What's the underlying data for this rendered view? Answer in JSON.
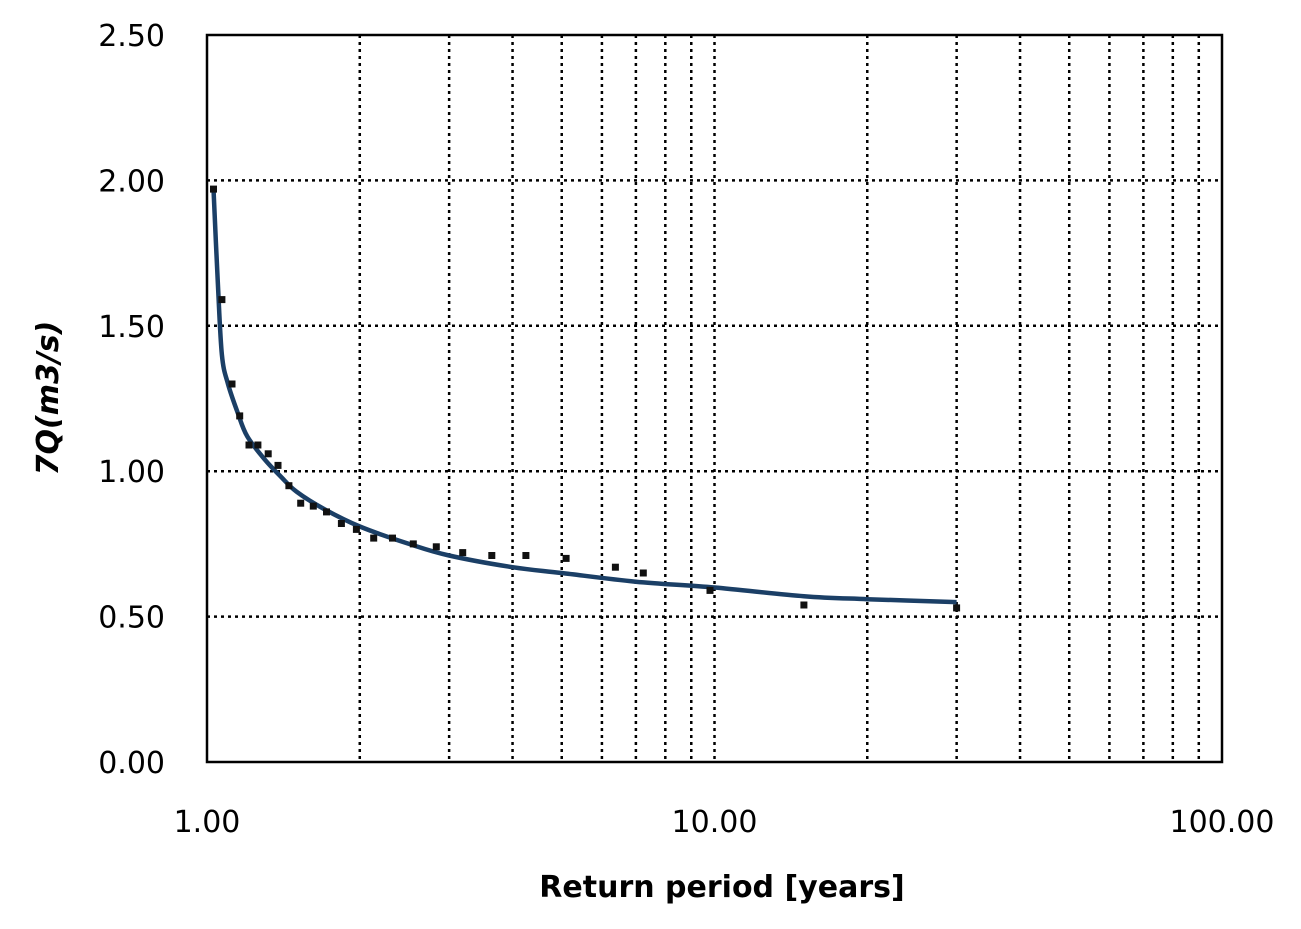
{
  "chart_data": {
    "type": "scatter",
    "title": "",
    "xlabel": "Return period [years]",
    "ylabel": "7Q(m3/s)",
    "x_scale": "log",
    "xlim": [
      1,
      100
    ],
    "ylim": [
      0,
      2.5
    ],
    "x_ticks": [
      "1.00",
      "10.00",
      "100.00"
    ],
    "y_ticks": [
      "0.00",
      "0.50",
      "1.00",
      "1.50",
      "2.00",
      "2.50"
    ],
    "grid": true,
    "legend": "none",
    "series": [
      {
        "kind": "points",
        "color": "#111111",
        "x": [
          1.03,
          1.07,
          1.12,
          1.16,
          1.21,
          1.26,
          1.32,
          1.38,
          1.45,
          1.53,
          1.62,
          1.72,
          1.84,
          1.97,
          2.13,
          2.32,
          2.55,
          2.83,
          3.19,
          3.64,
          4.25,
          5.1,
          6.38,
          7.24,
          9.8,
          15.0,
          30.0
        ],
        "y": [
          1.97,
          1.59,
          1.3,
          1.19,
          1.09,
          1.09,
          1.06,
          1.02,
          0.95,
          0.89,
          0.88,
          0.86,
          0.82,
          0.8,
          0.77,
          0.77,
          0.75,
          0.74,
          0.72,
          0.71,
          0.71,
          0.7,
          0.67,
          0.65,
          0.59,
          0.54,
          0.53
        ]
      },
      {
        "kind": "fit-line",
        "color": "#1b3f66",
        "x": [
          1.03,
          1.05,
          1.07,
          1.1,
          1.15,
          1.2,
          1.3,
          1.4,
          1.5,
          1.7,
          2.0,
          2.5,
          3.0,
          4.0,
          5.0,
          7.0,
          10.0,
          15.0,
          20.0,
          30.0
        ],
        "y": [
          1.97,
          1.65,
          1.4,
          1.3,
          1.2,
          1.12,
          1.04,
          0.98,
          0.93,
          0.87,
          0.81,
          0.75,
          0.71,
          0.67,
          0.65,
          0.62,
          0.6,
          0.57,
          0.56,
          0.55
        ]
      }
    ]
  }
}
